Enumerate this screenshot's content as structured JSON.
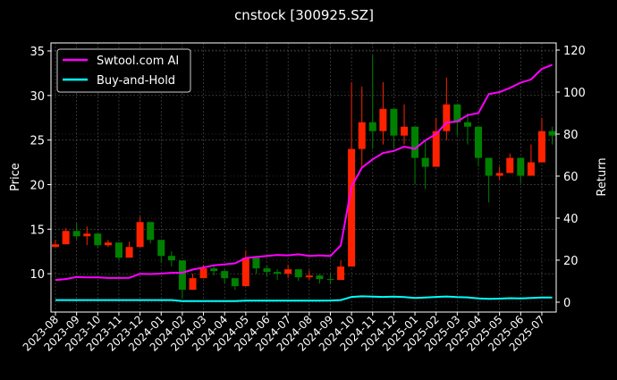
{
  "chart_data": {
    "type": "line",
    "title": "cnstock [300925.SZ]",
    "ylabel": "Price",
    "y2label": "Return",
    "ylim": [
      5.7,
      35.9
    ],
    "y2lim": [
      -4.7,
      123.4
    ],
    "yticks": [
      10,
      15,
      20,
      25,
      30,
      35
    ],
    "y2ticks": [
      0,
      20,
      40,
      60,
      80,
      100,
      120
    ],
    "xticks": [
      "2023-08",
      "2023-09",
      "2023-10",
      "2023-11",
      "2023-12",
      "2024-01",
      "2024-02",
      "2024-03",
      "2024-04",
      "2024-05",
      "2024-06",
      "2024-07",
      "2024-08",
      "2024-09",
      "2024-10",
      "2024-11",
      "2024-12",
      "2025-01",
      "2025-02",
      "2025-03",
      "2025-04",
      "2025-05",
      "2025-06",
      "2025-07"
    ],
    "grid": true,
    "legend_placement": "top-left",
    "colors": {
      "background": "#000000",
      "ai": "#ff00ff",
      "bh": "#00ffff",
      "up": "#ff2200",
      "down": "#008000",
      "grid": "#555555"
    },
    "legend": [
      "Swtool.com AI",
      "Buy-and-Hold"
    ],
    "dates": [
      "2023-08-01",
      "2023-08-16",
      "2023-09-01",
      "2023-09-16",
      "2023-10-01",
      "2023-10-16",
      "2023-11-01",
      "2023-11-16",
      "2023-12-01",
      "2023-12-16",
      "2024-01-01",
      "2024-01-16",
      "2024-02-01",
      "2024-02-16",
      "2024-03-01",
      "2024-03-16",
      "2024-04-01",
      "2024-04-16",
      "2024-05-01",
      "2024-05-16",
      "2024-06-01",
      "2024-06-16",
      "2024-07-01",
      "2024-07-16",
      "2024-08-01",
      "2024-08-16",
      "2024-09-01",
      "2024-09-16",
      "2024-10-01",
      "2024-10-16",
      "2024-11-01",
      "2024-11-16",
      "2024-12-01",
      "2024-12-16",
      "2025-01-01",
      "2025-01-16",
      "2025-02-01",
      "2025-02-16",
      "2025-03-01",
      "2025-03-16",
      "2025-04-01",
      "2025-04-16",
      "2025-05-01",
      "2025-05-16",
      "2025-06-01",
      "2025-06-16",
      "2025-07-01",
      "2025-07-16"
    ],
    "price": {
      "close": [
        13.3,
        14.8,
        14.2,
        14.5,
        13.2,
        13.5,
        11.8,
        13.0,
        15.8,
        13.8,
        12.0,
        11.5,
        8.2,
        9.5,
        10.6,
        10.3,
        9.5,
        8.6,
        11.8,
        10.6,
        10.2,
        10.0,
        10.5,
        9.6,
        9.8,
        9.4,
        9.3,
        10.8,
        24.0,
        27.0,
        26.0,
        28.5,
        25.5,
        26.5,
        23.0,
        22.0,
        26.0,
        29.0,
        27.0,
        26.5,
        23.0,
        21.0,
        21.3,
        23.0,
        21.0,
        22.5,
        26.0,
        25.5
      ],
      "high": [
        13.8,
        15.1,
        15.7,
        15.3,
        13.8,
        13.8,
        12.6,
        13.6,
        16.4,
        15.2,
        12.8,
        12.5,
        10.5,
        10.0,
        11.0,
        10.9,
        10.5,
        9.3,
        12.6,
        11.5,
        10.9,
        10.5,
        11.0,
        10.2,
        10.4,
        9.9,
        10.0,
        11.5,
        31.5,
        31.0,
        34.5,
        31.5,
        28.0,
        29.0,
        26.0,
        25.0,
        27.5,
        32.0,
        28.5,
        28.0,
        24.0,
        22.0,
        22.0,
        23.5,
        22.0,
        24.5,
        27.5,
        26.5
      ],
      "low": [
        13.0,
        13.5,
        13.8,
        13.2,
        12.9,
        13.0,
        11.5,
        12.2,
        13.0,
        13.4,
        11.2,
        10.8,
        7.2,
        8.5,
        9.6,
        9.8,
        8.9,
        8.2,
        9.5,
        10.0,
        9.7,
        9.3,
        9.5,
        9.2,
        9.3,
        8.9,
        8.8,
        9.8,
        16.0,
        22.0,
        24.0,
        24.5,
        24.0,
        24.5,
        20.0,
        19.5,
        22.0,
        25.0,
        25.5,
        24.5,
        22.0,
        18.0,
        20.5,
        22.0,
        20.2,
        21.5,
        24.5,
        24.5
      ]
    },
    "series": [
      {
        "name": "Swtool.com AI",
        "values": [
          10.5,
          11.0,
          12.0,
          11.8,
          11.8,
          11.5,
          11.5,
          11.6,
          13.5,
          13.4,
          13.6,
          14.0,
          14.0,
          15.5,
          16.5,
          17.5,
          18.0,
          18.5,
          21.0,
          21.5,
          22.0,
          22.5,
          22.3,
          22.8,
          22.0,
          22.3,
          22.0,
          27.0,
          55.0,
          64.0,
          68.0,
          71.0,
          72.0,
          74.0,
          73.0,
          77.0,
          80.0,
          85.5,
          86.0,
          89.0,
          90.0,
          99.0,
          100.0,
          102.0,
          104.5,
          106.0,
          111.0,
          113.0
        ]
      },
      {
        "name": "Buy-and-Hold",
        "values": [
          1,
          1,
          1,
          1,
          1,
          1,
          1,
          1,
          1,
          1,
          1,
          1,
          0.5,
          0.5,
          0.5,
          0.5,
          0.5,
          0.5,
          0.7,
          0.7,
          0.7,
          0.7,
          0.7,
          0.7,
          0.7,
          0.7,
          0.8,
          1.0,
          2.5,
          2.8,
          2.6,
          2.5,
          2.6,
          2.4,
          2.0,
          2.2,
          2.5,
          2.7,
          2.4,
          2.3,
          1.8,
          1.6,
          1.7,
          1.9,
          1.8,
          2.0,
          2.2,
          2.2
        ]
      }
    ]
  }
}
